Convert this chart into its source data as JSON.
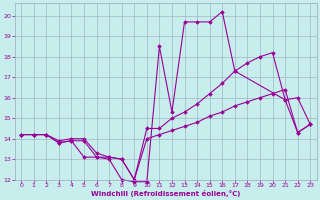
{
  "xlabel": "Windchill (Refroidissement éolien,°C)",
  "bg_color": "#c8eded",
  "line_color": "#990099",
  "grid_color": "#99aabb",
  "xlim_min": -0.5,
  "xlim_max": 23.5,
  "ylim_min": 12,
  "ylim_max": 20.6,
  "xticks": [
    0,
    1,
    2,
    3,
    4,
    5,
    6,
    7,
    8,
    9,
    10,
    11,
    12,
    13,
    14,
    15,
    16,
    17,
    18,
    19,
    20,
    21,
    22,
    23
  ],
  "yticks": [
    12,
    13,
    14,
    15,
    16,
    17,
    18,
    19,
    20
  ],
  "s1_x": [
    0,
    1,
    2,
    3,
    4,
    5,
    6,
    7,
    8,
    9,
    10,
    11,
    12,
    13,
    14,
    15,
    16,
    17,
    21,
    22,
    23
  ],
  "s1_y": [
    14.2,
    14.2,
    14.2,
    13.8,
    13.9,
    13.1,
    13.1,
    13.0,
    12.0,
    11.9,
    11.9,
    18.5,
    15.3,
    19.7,
    19.7,
    19.7,
    20.2,
    17.3,
    15.9,
    14.3,
    14.7
  ],
  "s2_x": [
    0,
    1,
    2,
    3,
    4,
    5,
    6,
    7,
    8,
    9,
    10,
    11,
    12,
    13,
    14,
    15,
    16,
    17,
    18,
    19,
    20,
    21,
    22,
    23
  ],
  "s2_y": [
    14.2,
    14.2,
    14.2,
    13.8,
    13.9,
    13.9,
    13.1,
    13.1,
    13.0,
    12.0,
    14.5,
    14.5,
    15.0,
    15.3,
    15.7,
    16.2,
    16.7,
    17.3,
    17.7,
    18.0,
    18.2,
    15.9,
    16.0,
    14.7
  ],
  "s3_x": [
    0,
    1,
    2,
    3,
    4,
    5,
    6,
    7,
    8,
    9,
    10,
    11,
    12,
    13,
    14,
    15,
    16,
    17,
    18,
    19,
    20,
    21,
    22,
    23
  ],
  "s3_y": [
    14.2,
    14.2,
    14.2,
    13.9,
    14.0,
    14.0,
    13.3,
    13.1,
    13.0,
    12.0,
    14.0,
    14.2,
    14.4,
    14.6,
    14.8,
    15.1,
    15.3,
    15.6,
    15.8,
    16.0,
    16.2,
    16.4,
    14.3,
    14.7
  ]
}
